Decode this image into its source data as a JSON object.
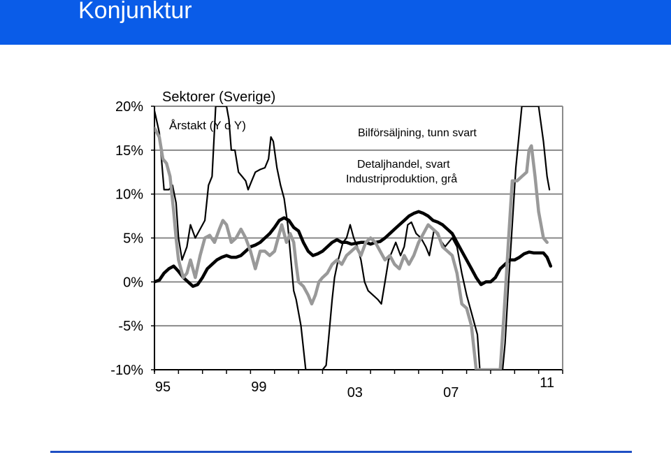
{
  "header": {
    "title": "Konjunktur",
    "background": "#0a5ce8"
  },
  "chart_data": {
    "type": "line",
    "title": "Sektorer (Sverige)",
    "subtitle": "Årstakt (Y o Y)",
    "y_tick_labels": [
      "20%",
      "15%",
      "10%",
      "5%",
      "0%",
      "-5%",
      "-10%"
    ],
    "y_ticks": [
      20,
      15,
      10,
      5,
      0,
      -5,
      -10
    ],
    "ylim": [
      -10,
      20
    ],
    "xlim": [
      1995.0,
      2012.0
    ],
    "x_tick_labels": [
      {
        "label": "95",
        "x": 1995.0
      },
      {
        "label": "99",
        "x": 1999.0
      },
      {
        "label": "03",
        "x": 2003.0
      },
      {
        "label": "07",
        "x": 2007.0
      },
      {
        "label": "11",
        "x": 2011.0
      }
    ],
    "grid": true,
    "legend": [
      {
        "text": "Bilförsäljning, tunn svart"
      },
      {
        "text": "Detaljhandel, svart"
      },
      {
        "text": "Industriproduktion, grå"
      }
    ],
    "series": [
      {
        "key": "bil",
        "color": "#000000",
        "style": "thin",
        "points": [
          [
            1995.0,
            19.5
          ],
          [
            1995.2,
            17.0
          ],
          [
            1995.4,
            10.5
          ],
          [
            1995.6,
            10.5
          ],
          [
            1995.75,
            11.0
          ],
          [
            1995.9,
            9.0
          ],
          [
            1996.0,
            5.0
          ],
          [
            1996.15,
            2.5
          ],
          [
            1996.35,
            4.0
          ],
          [
            1996.5,
            6.5
          ],
          [
            1996.7,
            5.0
          ],
          [
            1996.9,
            6.0
          ],
          [
            1997.1,
            7.0
          ],
          [
            1997.25,
            11.0
          ],
          [
            1997.4,
            12.0
          ],
          [
            1997.55,
            20.0
          ],
          [
            1998.0,
            20.0
          ],
          [
            1998.1,
            18.5
          ],
          [
            1998.2,
            15.0
          ],
          [
            1998.35,
            15.0
          ],
          [
            1998.5,
            12.5
          ],
          [
            1998.65,
            12.0
          ],
          [
            1998.8,
            11.5
          ],
          [
            1998.9,
            10.5
          ],
          [
            1999.05,
            11.5
          ],
          [
            1999.2,
            12.5
          ],
          [
            1999.4,
            12.8
          ],
          [
            1999.6,
            13.0
          ],
          [
            1999.75,
            14.0
          ],
          [
            1999.85,
            16.5
          ],
          [
            1999.95,
            16.0
          ],
          [
            2000.1,
            13.0
          ],
          [
            2000.25,
            11.0
          ],
          [
            2000.4,
            9.5
          ],
          [
            2000.55,
            6.5
          ],
          [
            2000.7,
            2.0
          ],
          [
            2000.8,
            -1.0
          ],
          [
            2000.9,
            -2.0
          ],
          [
            2001.1,
            -5.0
          ],
          [
            2001.3,
            -10.0
          ],
          [
            2002.0,
            -10.0
          ],
          [
            2002.15,
            -9.5
          ],
          [
            2002.25,
            -6.5
          ],
          [
            2002.4,
            -2.0
          ],
          [
            2002.5,
            0.5
          ],
          [
            2002.65,
            2.5
          ],
          [
            2002.85,
            4.5
          ],
          [
            2003.0,
            5.0
          ],
          [
            2003.15,
            6.5
          ],
          [
            2003.3,
            5.0
          ],
          [
            2003.45,
            4.0
          ],
          [
            2003.6,
            2.5
          ],
          [
            2003.75,
            0.0
          ],
          [
            2003.9,
            -1.0
          ],
          [
            2004.1,
            -1.5
          ],
          [
            2004.3,
            -2.0
          ],
          [
            2004.45,
            -2.5
          ],
          [
            2004.6,
            0.0
          ],
          [
            2004.75,
            2.5
          ],
          [
            2004.9,
            3.5
          ],
          [
            2005.05,
            4.5
          ],
          [
            2005.25,
            3.0
          ],
          [
            2005.4,
            4.0
          ],
          [
            2005.55,
            6.5
          ],
          [
            2005.7,
            6.8
          ],
          [
            2005.9,
            5.5
          ],
          [
            2006.1,
            5.0
          ],
          [
            2006.3,
            4.0
          ],
          [
            2006.45,
            3.0
          ],
          [
            2006.65,
            6.0
          ],
          [
            2006.85,
            5.0
          ],
          [
            2007.1,
            4.0
          ],
          [
            2007.4,
            5.0
          ],
          [
            2007.6,
            4.0
          ],
          [
            2007.8,
            1.0
          ],
          [
            2008.0,
            -1.5
          ],
          [
            2008.2,
            -3.5
          ],
          [
            2008.45,
            -6.0
          ],
          [
            2008.55,
            -10.0
          ],
          [
            2009.5,
            -10.0
          ],
          [
            2009.6,
            -7.0
          ],
          [
            2009.75,
            0.0
          ],
          [
            2009.9,
            6.5
          ],
          [
            2010.05,
            13.0
          ],
          [
            2010.3,
            20.0
          ],
          [
            2011.0,
            20.0
          ],
          [
            2011.2,
            16.0
          ],
          [
            2011.35,
            12.0
          ],
          [
            2011.45,
            10.5
          ]
        ]
      },
      {
        "key": "detalj",
        "color": "#000000",
        "style": "thick",
        "points": [
          [
            1995.0,
            0.0
          ],
          [
            1995.2,
            0.2
          ],
          [
            1995.4,
            1.0
          ],
          [
            1995.6,
            1.5
          ],
          [
            1995.8,
            1.8
          ],
          [
            1996.0,
            1.2
          ],
          [
            1996.2,
            0.5
          ],
          [
            1996.4,
            0.0
          ],
          [
            1996.6,
            -0.5
          ],
          [
            1996.8,
            -0.3
          ],
          [
            1997.0,
            0.5
          ],
          [
            1997.2,
            1.5
          ],
          [
            1997.4,
            2.0
          ],
          [
            1997.6,
            2.5
          ],
          [
            1997.8,
            2.8
          ],
          [
            1998.0,
            3.0
          ],
          [
            1998.2,
            2.8
          ],
          [
            1998.4,
            2.8
          ],
          [
            1998.6,
            3.0
          ],
          [
            1998.8,
            3.5
          ],
          [
            1999.0,
            4.0
          ],
          [
            1999.2,
            4.2
          ],
          [
            1999.4,
            4.5
          ],
          [
            1999.6,
            5.0
          ],
          [
            1999.8,
            5.5
          ],
          [
            2000.0,
            6.2
          ],
          [
            2000.2,
            7.0
          ],
          [
            2000.4,
            7.3
          ],
          [
            2000.6,
            7.0
          ],
          [
            2000.8,
            6.2
          ],
          [
            2001.0,
            5.8
          ],
          [
            2001.2,
            4.5
          ],
          [
            2001.4,
            3.5
          ],
          [
            2001.6,
            3.0
          ],
          [
            2001.8,
            3.2
          ],
          [
            2002.0,
            3.5
          ],
          [
            2002.2,
            4.0
          ],
          [
            2002.4,
            4.5
          ],
          [
            2002.6,
            4.8
          ],
          [
            2002.8,
            4.5
          ],
          [
            2003.0,
            4.5
          ],
          [
            2003.2,
            4.3
          ],
          [
            2003.4,
            4.4
          ],
          [
            2003.6,
            4.5
          ],
          [
            2003.8,
            4.5
          ],
          [
            2004.0,
            4.3
          ],
          [
            2004.2,
            4.5
          ],
          [
            2004.4,
            4.6
          ],
          [
            2004.6,
            5.0
          ],
          [
            2004.8,
            5.5
          ],
          [
            2005.0,
            6.0
          ],
          [
            2005.2,
            6.5
          ],
          [
            2005.4,
            7.0
          ],
          [
            2005.6,
            7.5
          ],
          [
            2005.8,
            7.8
          ],
          [
            2006.0,
            8.0
          ],
          [
            2006.2,
            7.8
          ],
          [
            2006.4,
            7.5
          ],
          [
            2006.6,
            7.0
          ],
          [
            2006.8,
            6.8
          ],
          [
            2007.0,
            6.5
          ],
          [
            2007.2,
            6.0
          ],
          [
            2007.4,
            5.5
          ],
          [
            2007.6,
            4.5
          ],
          [
            2007.8,
            3.5
          ],
          [
            2008.0,
            2.5
          ],
          [
            2008.2,
            1.5
          ],
          [
            2008.4,
            0.5
          ],
          [
            2008.6,
            -0.3
          ],
          [
            2008.8,
            0.0
          ],
          [
            2009.0,
            0.0
          ],
          [
            2009.2,
            0.5
          ],
          [
            2009.4,
            1.5
          ],
          [
            2009.6,
            2.0
          ],
          [
            2009.8,
            2.5
          ],
          [
            2010.0,
            2.5
          ],
          [
            2010.2,
            2.8
          ],
          [
            2010.4,
            3.2
          ],
          [
            2010.6,
            3.4
          ],
          [
            2010.8,
            3.3
          ],
          [
            2011.0,
            3.3
          ],
          [
            2011.2,
            3.3
          ],
          [
            2011.35,
            2.8
          ],
          [
            2011.5,
            1.8
          ]
        ]
      },
      {
        "key": "indust",
        "color": "#999999",
        "style": "thick",
        "points": [
          [
            1995.0,
            17.5
          ],
          [
            1995.2,
            16.5
          ],
          [
            1995.35,
            14.0
          ],
          [
            1995.5,
            13.5
          ],
          [
            1995.65,
            12.0
          ],
          [
            1995.8,
            8.0
          ],
          [
            1995.9,
            5.0
          ],
          [
            1996.0,
            2.5
          ],
          [
            1996.2,
            0.5
          ],
          [
            1996.35,
            1.0
          ],
          [
            1996.5,
            2.5
          ],
          [
            1996.7,
            0.5
          ],
          [
            1996.9,
            3.0
          ],
          [
            1997.1,
            5.0
          ],
          [
            1997.3,
            5.3
          ],
          [
            1997.5,
            4.5
          ],
          [
            1997.7,
            6.0
          ],
          [
            1997.85,
            7.0
          ],
          [
            1998.0,
            6.5
          ],
          [
            1998.2,
            4.5
          ],
          [
            1998.4,
            5.0
          ],
          [
            1998.6,
            6.0
          ],
          [
            1998.8,
            5.0
          ],
          [
            1999.0,
            3.5
          ],
          [
            1999.2,
            1.5
          ],
          [
            1999.4,
            3.5
          ],
          [
            1999.6,
            3.5
          ],
          [
            1999.8,
            3.0
          ],
          [
            2000.0,
            3.5
          ],
          [
            2000.15,
            5.0
          ],
          [
            2000.3,
            6.5
          ],
          [
            2000.5,
            4.5
          ],
          [
            2000.65,
            5.5
          ],
          [
            2000.8,
            4.5
          ],
          [
            2000.9,
            2.0
          ],
          [
            2001.0,
            0.0
          ],
          [
            2001.2,
            -0.5
          ],
          [
            2001.4,
            -1.5
          ],
          [
            2001.55,
            -2.5
          ],
          [
            2001.7,
            -1.5
          ],
          [
            2001.85,
            0.0
          ],
          [
            2002.0,
            0.5
          ],
          [
            2002.2,
            1.0
          ],
          [
            2002.4,
            2.0
          ],
          [
            2002.6,
            2.5
          ],
          [
            2002.8,
            2.0
          ],
          [
            2003.0,
            3.0
          ],
          [
            2003.2,
            3.5
          ],
          [
            2003.4,
            4.0
          ],
          [
            2003.6,
            3.0
          ],
          [
            2003.8,
            4.5
          ],
          [
            2004.0,
            5.0
          ],
          [
            2004.2,
            4.5
          ],
          [
            2004.4,
            3.5
          ],
          [
            2004.6,
            2.5
          ],
          [
            2004.8,
            3.0
          ],
          [
            2005.0,
            2.0
          ],
          [
            2005.2,
            1.5
          ],
          [
            2005.4,
            3.0
          ],
          [
            2005.6,
            2.0
          ],
          [
            2005.8,
            3.0
          ],
          [
            2006.0,
            4.5
          ],
          [
            2006.2,
            5.5
          ],
          [
            2006.4,
            6.5
          ],
          [
            2006.6,
            6.0
          ],
          [
            2006.8,
            5.5
          ],
          [
            2007.0,
            4.0
          ],
          [
            2007.2,
            3.5
          ],
          [
            2007.4,
            3.0
          ],
          [
            2007.6,
            1.0
          ],
          [
            2007.8,
            -2.5
          ],
          [
            2008.0,
            -3.0
          ],
          [
            2008.2,
            -5.0
          ],
          [
            2008.4,
            -10.0
          ],
          [
            2009.4,
            -10.0
          ],
          [
            2009.55,
            -4.0
          ],
          [
            2009.65,
            0.5
          ],
          [
            2009.75,
            5.0
          ],
          [
            2009.9,
            11.5
          ],
          [
            2010.1,
            11.5
          ],
          [
            2010.3,
            12.0
          ],
          [
            2010.5,
            12.5
          ],
          [
            2010.6,
            15.0
          ],
          [
            2010.7,
            15.5
          ],
          [
            2010.85,
            12.0
          ],
          [
            2011.0,
            8.0
          ],
          [
            2011.2,
            5.0
          ],
          [
            2011.35,
            4.5
          ]
        ]
      }
    ]
  }
}
